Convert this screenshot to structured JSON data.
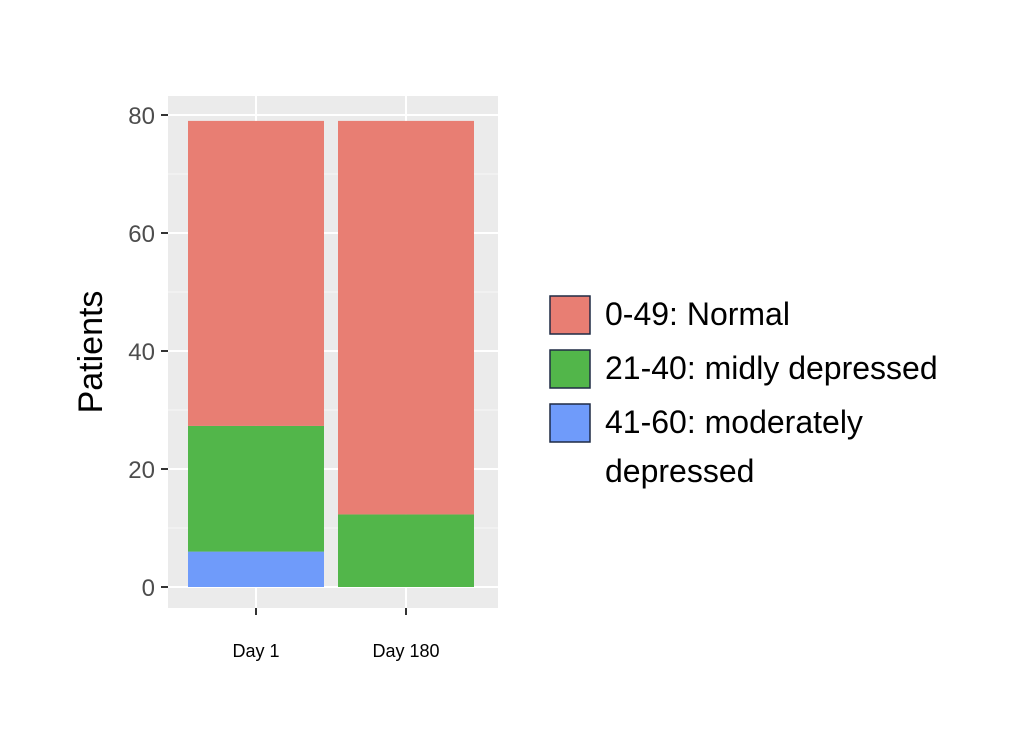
{
  "chart_data": {
    "type": "bar",
    "stacked": true,
    "categories": [
      "Day 1",
      "Day 180"
    ],
    "series": [
      {
        "name": "41-60: moderately depressed",
        "color": "#6f9bfa",
        "values": [
          6,
          0
        ]
      },
      {
        "name": "21-40: midly depressed",
        "color": "#52b64a",
        "values": [
          21.3,
          12.3
        ]
      },
      {
        "name": "0-49: Normal",
        "color": "#e87e73",
        "values": [
          51.7,
          66.7
        ]
      }
    ],
    "xlabel": "",
    "ylabel": "Patients",
    "ylim": [
      0,
      80
    ],
    "yticks": [
      0,
      20,
      40,
      60,
      80
    ],
    "grid": true,
    "legend": {
      "position": "right",
      "entries": [
        {
          "lines": [
            "0-49: Normal"
          ],
          "color": "#e87e73"
        },
        {
          "lines": [
            "21-40: midly depressed"
          ],
          "color": "#52b64a"
        },
        {
          "lines": [
            "41-60: moderately",
            "depressed"
          ],
          "color": "#6f9bfa"
        }
      ]
    }
  }
}
